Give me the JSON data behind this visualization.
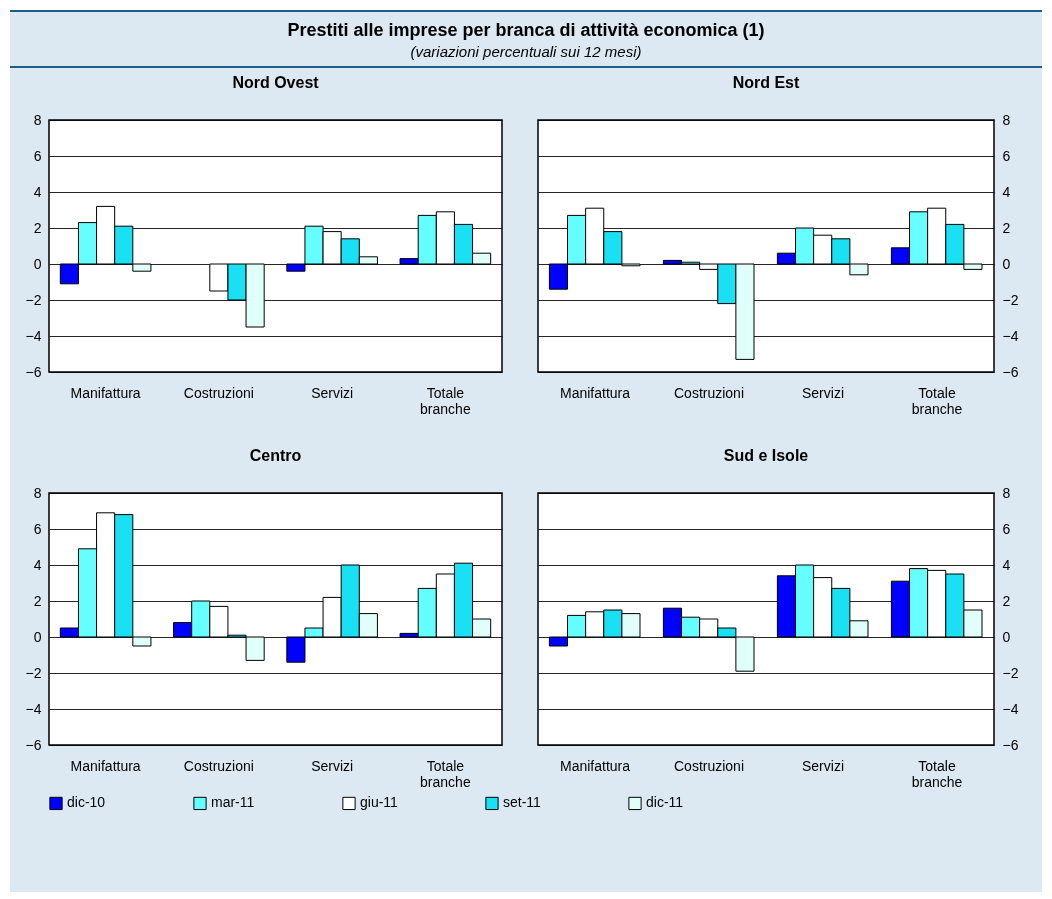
{
  "chart_data": [
    {
      "type": "bar",
      "title": "Nord Ovest",
      "annotations": [
        "Prestiti alle imprese per branca di attività economica (1)",
        "(variazioni percentuali sui 12 mesi)"
      ],
      "categories": [
        "Manifattura",
        "Costruzioni",
        "Servizi",
        "Totale branche"
      ],
      "ylim": [
        -6,
        8
      ],
      "yticks": [
        -6,
        -4,
        -2,
        0,
        2,
        4,
        6,
        8
      ],
      "grid": "y",
      "legend": "bottom",
      "series": [
        {
          "name": "dic-10",
          "color": "#0000ff",
          "values": [
            -1.1,
            null,
            -0.4,
            0.3
          ]
        },
        {
          "name": "mar-11",
          "color": "#66ffff",
          "values": [
            2.3,
            null,
            2.1,
            2.7
          ]
        },
        {
          "name": "giu-11",
          "color": "#ffffff",
          "values": [
            3.2,
            -1.5,
            1.8,
            2.9
          ]
        },
        {
          "name": "set-11",
          "color": "#19e0f2",
          "values": [
            2.1,
            -2.0,
            1.4,
            2.2
          ]
        },
        {
          "name": "dic-11",
          "color": "#e0fffa",
          "values": [
            -0.4,
            -3.5,
            0.4,
            0.6
          ]
        }
      ]
    },
    {
      "type": "bar",
      "title": "Nord Est",
      "categories": [
        "Manifattura",
        "Costruzioni",
        "Servizi",
        "Totale branche"
      ],
      "ylim": [
        -6,
        8
      ],
      "yticks": [
        -6,
        -4,
        -2,
        0,
        2,
        4,
        6,
        8
      ],
      "grid": "y",
      "legend": "bottom",
      "series": [
        {
          "name": "dic-10",
          "color": "#0000ff",
          "values": [
            -1.4,
            0.2,
            0.6,
            0.9
          ]
        },
        {
          "name": "mar-11",
          "color": "#66ffff",
          "values": [
            2.7,
            0.1,
            2.0,
            2.9
          ]
        },
        {
          "name": "giu-11",
          "color": "#ffffff",
          "values": [
            3.1,
            -0.3,
            1.6,
            3.1
          ]
        },
        {
          "name": "set-11",
          "color": "#19e0f2",
          "values": [
            1.8,
            -2.2,
            1.4,
            2.2
          ]
        },
        {
          "name": "dic-11",
          "color": "#e0fffa",
          "values": [
            -0.1,
            -5.3,
            -0.6,
            -0.3
          ]
        }
      ]
    },
    {
      "type": "bar",
      "title": "Centro",
      "categories": [
        "Manifattura",
        "Costruzioni",
        "Servizi",
        "Totale branche"
      ],
      "ylim": [
        -6,
        8
      ],
      "yticks": [
        -6,
        -4,
        -2,
        0,
        2,
        4,
        6,
        8
      ],
      "grid": "y",
      "legend": "bottom",
      "series": [
        {
          "name": "dic-10",
          "color": "#0000ff",
          "values": [
            0.5,
            0.8,
            -1.4,
            0.2
          ]
        },
        {
          "name": "mar-11",
          "color": "#66ffff",
          "values": [
            4.9,
            2.0,
            0.5,
            2.7
          ]
        },
        {
          "name": "giu-11",
          "color": "#ffffff",
          "values": [
            6.9,
            1.7,
            2.2,
            3.5
          ]
        },
        {
          "name": "set-11",
          "color": "#19e0f2",
          "values": [
            6.8,
            0.1,
            4.0,
            4.1
          ]
        },
        {
          "name": "dic-11",
          "color": "#e0fffa",
          "values": [
            -0.5,
            -1.3,
            1.3,
            1.0
          ]
        }
      ]
    },
    {
      "type": "bar",
      "title": "Sud e Isole",
      "categories": [
        "Manifattura",
        "Costruzioni",
        "Servizi",
        "Totale branche"
      ],
      "ylim": [
        -6,
        8
      ],
      "yticks": [
        -6,
        -4,
        -2,
        0,
        2,
        4,
        6,
        8
      ],
      "grid": "y",
      "legend": "bottom",
      "series": [
        {
          "name": "dic-10",
          "color": "#0000ff",
          "values": [
            -0.5,
            1.6,
            3.4,
            3.1
          ]
        },
        {
          "name": "mar-11",
          "color": "#66ffff",
          "values": [
            1.2,
            1.1,
            4.0,
            3.8
          ]
        },
        {
          "name": "giu-11",
          "color": "#ffffff",
          "values": [
            1.4,
            1.0,
            3.3,
            3.7
          ]
        },
        {
          "name": "set-11",
          "color": "#19e0f2",
          "values": [
            1.5,
            0.5,
            2.7,
            3.5
          ]
        },
        {
          "name": "dic-11",
          "color": "#e0fffa",
          "values": [
            1.3,
            -1.9,
            0.9,
            1.5
          ]
        }
      ]
    }
  ]
}
